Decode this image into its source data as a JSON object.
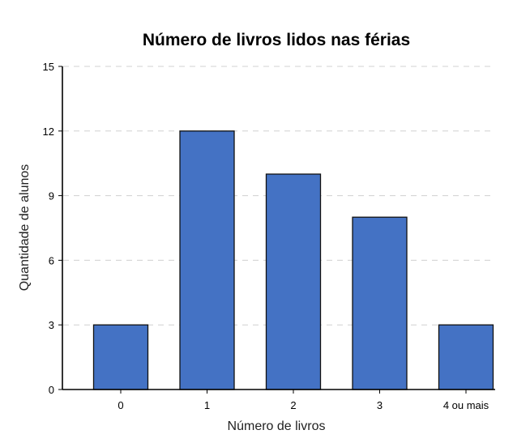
{
  "chart_data": {
    "type": "bar",
    "title": "Número de livros lidos nas férias",
    "xlabel": "Número de livros",
    "ylabel": "Quantidade de alunos",
    "categories": [
      "0",
      "1",
      "2",
      "3",
      "4 ou mais"
    ],
    "values": [
      3,
      12,
      10,
      8,
      3
    ],
    "ylim": [
      0,
      15
    ],
    "yticks": [
      "0",
      "3",
      "6",
      "9",
      "12",
      "15"
    ],
    "grid": true,
    "bar_color": "#4472C4"
  }
}
